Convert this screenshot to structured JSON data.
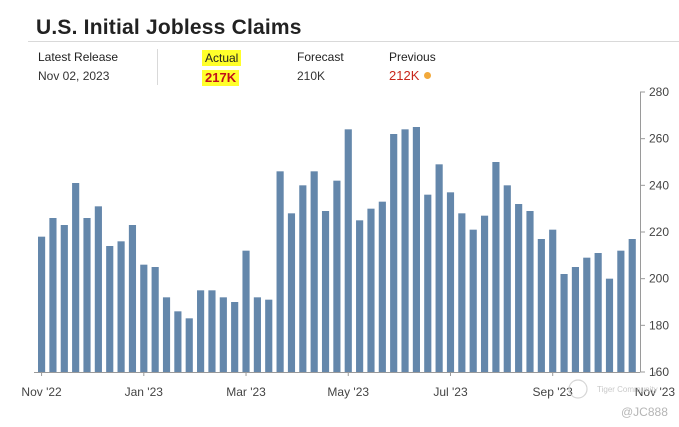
{
  "header": {
    "title": "U.S. Initial Jobless Claims"
  },
  "stats": {
    "release": {
      "label": "Latest Release",
      "value": "Nov 02, 2023"
    },
    "actual": {
      "label": "Actual",
      "value": "217K"
    },
    "forecast": {
      "label": "Forecast",
      "value": "210K"
    },
    "previous": {
      "label": "Previous",
      "value": "212K"
    }
  },
  "watermark": {
    "text": "Tiger Community",
    "user": "@JC888"
  },
  "colors": {
    "bar": "#6487ab",
    "actual_highlight": "#ffff2b",
    "actual_text": "#c0101a",
    "previous_text": "#c8261c",
    "previous_dot": "#f2a93b"
  },
  "chart_data": {
    "type": "bar",
    "title": "U.S. Initial Jobless Claims",
    "xlabel": "",
    "ylabel": "",
    "ylim": [
      160,
      280
    ],
    "yticks": [
      160,
      180,
      200,
      220,
      240,
      260,
      280
    ],
    "y_axis_side": "right",
    "grid": false,
    "unit": "K",
    "x_tick_labels": [
      {
        "label": "Nov '22",
        "index": 0
      },
      {
        "label": "Jan '23",
        "index": 9
      },
      {
        "label": "Mar '23",
        "index": 18
      },
      {
        "label": "May '23",
        "index": 27
      },
      {
        "label": "Jul '23",
        "index": 36
      },
      {
        "label": "Sep '23",
        "index": 45
      },
      {
        "label": "Nov '23",
        "index": 54
      }
    ],
    "values": [
      218,
      226,
      223,
      241,
      226,
      231,
      214,
      216,
      223,
      206,
      205,
      192,
      186,
      183,
      195,
      195,
      192,
      190,
      212,
      192,
      191,
      246,
      228,
      240,
      246,
      229,
      242,
      264,
      225,
      230,
      233,
      262,
      264,
      265,
      236,
      249,
      237,
      228,
      221,
      227,
      250,
      240,
      232,
      229,
      217,
      221,
      202,
      205,
      209,
      211,
      200,
      212,
      217
    ]
  }
}
